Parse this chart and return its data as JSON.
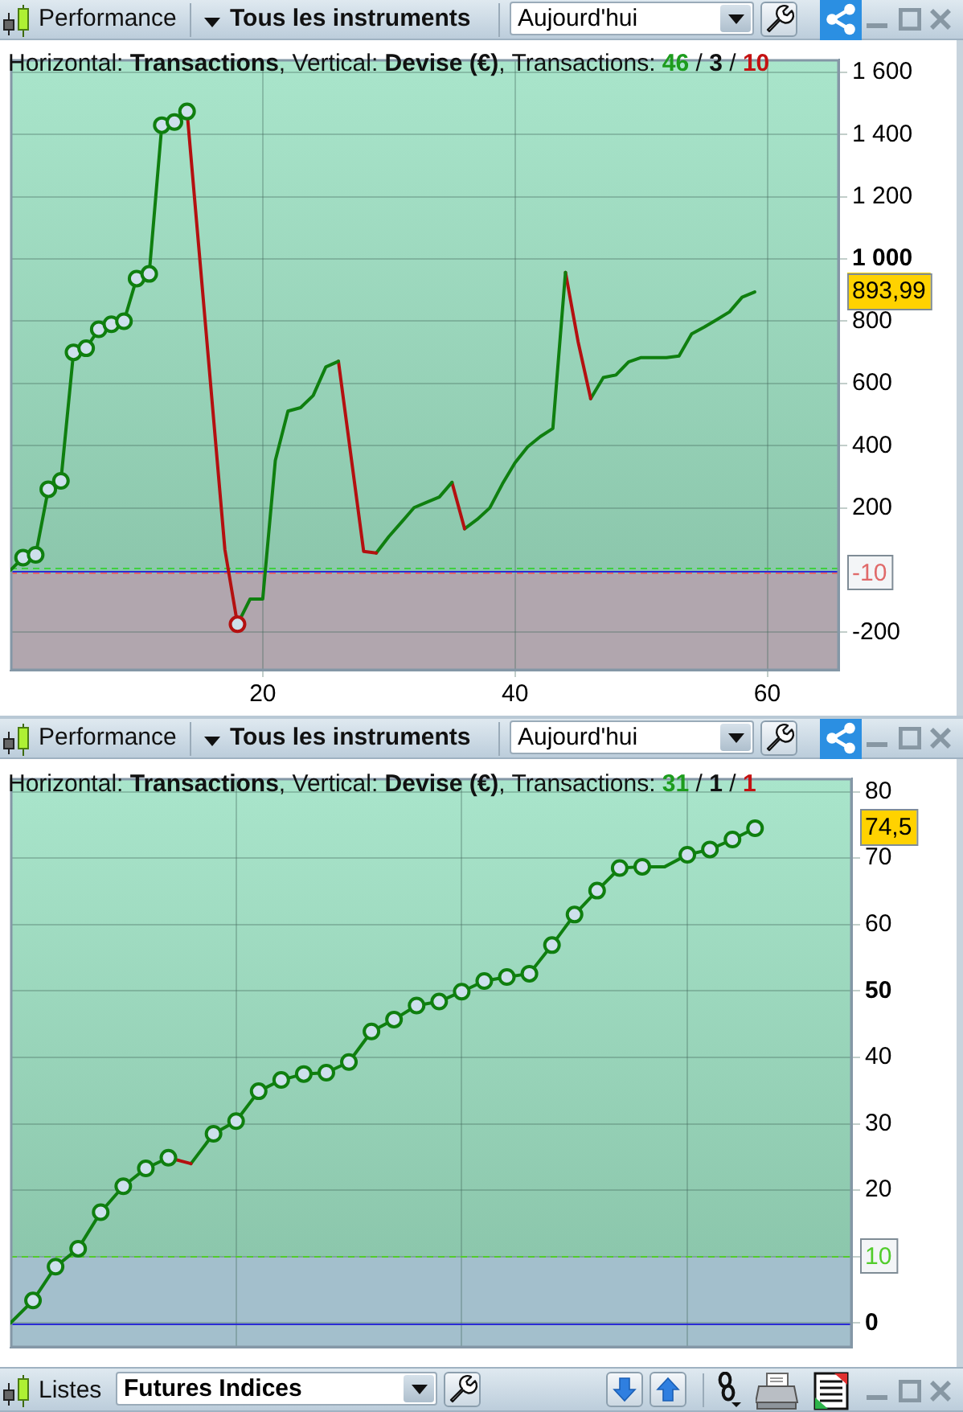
{
  "chart_data": [
    {
      "type": "line",
      "title": "Horizontal: Transactions, Vertical: Devise (€), Transactions: 46 / 3 / 10",
      "annotations": [
        "Performance",
        "Tous les instruments",
        "Aujourd'hui"
      ],
      "series": [
        {
          "color": "#0f7f0f",
          "x": [
            0,
            1,
            2,
            3,
            4,
            5,
            6,
            7,
            8,
            9,
            10,
            11,
            12,
            13,
            14
          ],
          "values": [
            0,
            40,
            49,
            260,
            287,
            700,
            713,
            774,
            790,
            800,
            937,
            952,
            1430,
            1440,
            1474
          ]
        },
        {
          "color": "#b41010",
          "x": [
            14,
            17,
            18
          ],
          "values": [
            1474,
            66,
            -174
          ]
        },
        {
          "color": "#0f7f0f",
          "x": [
            18,
            19,
            20,
            21,
            22,
            23,
            24,
            25,
            26
          ],
          "values": [
            -174,
            -93,
            -93,
            353,
            511,
            522,
            561,
            653,
            671
          ]
        },
        {
          "color": "#b41010",
          "x": [
            26,
            28,
            29
          ],
          "values": [
            671,
            60,
            55
          ]
        },
        {
          "color": "#0f7f0f",
          "x": [
            29,
            30,
            31,
            32,
            33,
            34,
            35
          ],
          "values": [
            55,
            108,
            154,
            201,
            218,
            235,
            282
          ]
        },
        {
          "color": "#b41010",
          "x": [
            35,
            36
          ],
          "values": [
            282,
            133
          ]
        },
        {
          "color": "#0f7f0f",
          "x": [
            36,
            37,
            38,
            39,
            40,
            41,
            42,
            43,
            44
          ],
          "values": [
            133,
            163,
            200,
            277,
            345,
            396,
            429,
            455,
            957
          ]
        },
        {
          "color": "#b41010",
          "x": [
            44,
            45,
            46
          ],
          "values": [
            957,
            734,
            551
          ]
        },
        {
          "color": "#0f7f0f",
          "x": [
            46,
            47,
            48,
            49,
            50,
            51,
            52,
            53,
            54,
            55,
            56,
            57,
            58,
            59
          ],
          "values": [
            551,
            619,
            627,
            669,
            683,
            683,
            683,
            688,
            759,
            781,
            805,
            830,
            877,
            893.99
          ]
        },
        {
          "type": "scatter",
          "marker": "circle",
          "color": "#0f7f0f",
          "x": [
            1,
            2,
            3,
            4,
            5,
            6,
            7,
            8,
            9,
            10,
            11,
            12,
            13,
            14
          ],
          "values": [
            40,
            49,
            260,
            287,
            700,
            713,
            774,
            790,
            800,
            937,
            952,
            1430,
            1440,
            1474
          ]
        },
        {
          "type": "scatter",
          "marker": "circle",
          "color": "#b41010",
          "x": [
            18
          ],
          "values": [
            -174
          ]
        }
      ],
      "xlim": [
        0,
        65.7
      ],
      "xticks": [
        20,
        40,
        60
      ],
      "ylim": [
        -323,
        1641
      ],
      "yticks": [
        -200,
        200,
        400,
        600,
        800,
        {
          "value": 893.99,
          "label": "893,99"
        },
        {
          "value": 1000,
          "label": "1 000"
        },
        {
          "value": 1200,
          "label": "1 200"
        },
        {
          "value": 1400,
          "label": "1 400"
        },
        {
          "value": 1600,
          "label": "1 600"
        }
      ],
      "ref_lines": [
        {
          "axis": "y",
          "value": 10,
          "color": "#3fcf3f",
          "line_style": "dashed"
        },
        {
          "axis": "y",
          "value": 0,
          "color": "#2b2bd6",
          "line_style": "solid"
        },
        {
          "axis": "y",
          "value": -10,
          "label": "-10",
          "color": "#e06a6a",
          "line_style": "dashed"
        }
      ],
      "bands": [
        {
          "axis": "y",
          "from": -323,
          "to": -10,
          "color": "#b1a6ae"
        }
      ],
      "grid": true
    },
    {
      "type": "line",
      "title": "Horizontal: Transactions, Vertical: Devise (€), Transactions: 31 / 1 / 1",
      "annotations": [
        "Performance",
        "Tous les instruments",
        "Aujourd'hui",
        "Listes",
        "Futures Indices"
      ],
      "categories": [
        null,
        null,
        null,
        null,
        null,
        null,
        null,
        null,
        null,
        null,
        null,
        null,
        null,
        null,
        null,
        null,
        null,
        null,
        null,
        null,
        null,
        null,
        null,
        null,
        null,
        null,
        null,
        null,
        null,
        null,
        null,
        null,
        null,
        null
      ],
      "series": [
        {
          "color": "#0f7f0f",
          "values": [
            0,
            3.4,
            8.5,
            11.2,
            16.7,
            20.6,
            23.3,
            24.9,
            null,
            null,
            null,
            null,
            null,
            null,
            null,
            null,
            null,
            null,
            null,
            null,
            null,
            null,
            null,
            null,
            null,
            null,
            null,
            null,
            null,
            null,
            null,
            null,
            null,
            null
          ]
        },
        {
          "color": "#b41010",
          "values": [
            null,
            null,
            null,
            null,
            null,
            null,
            null,
            24.9,
            24.0,
            null,
            null,
            null,
            null,
            null,
            null,
            null,
            null,
            null,
            null,
            null,
            null,
            null,
            null,
            null,
            null,
            null,
            null,
            null,
            null,
            null,
            null,
            null,
            null,
            null
          ]
        },
        {
          "color": "#0f7f0f",
          "values": [
            null,
            null,
            null,
            null,
            null,
            null,
            null,
            null,
            24.0,
            28.5,
            30.4,
            34.9,
            36.6,
            37.5,
            37.7,
            39.3,
            43.9,
            45.7,
            47.8,
            48.4,
            49.9,
            51.5,
            52.1,
            52.6,
            56.9,
            61.5,
            65.1,
            68.5,
            68.7,
            68.7,
            70.5,
            71.3,
            72.8,
            74.5
          ]
        },
        {
          "type": "scatter",
          "marker": "circle",
          "color": "#0f7f0f",
          "values": [
            null,
            3.4,
            8.5,
            11.2,
            16.7,
            20.6,
            23.3,
            24.9,
            null,
            28.5,
            30.4,
            34.9,
            36.6,
            37.5,
            37.7,
            39.3,
            43.9,
            45.7,
            47.8,
            48.4,
            49.9,
            51.5,
            52.1,
            52.6,
            56.9,
            61.5,
            65.1,
            68.5,
            68.7,
            null,
            70.5,
            71.3,
            72.8,
            74.5
          ]
        }
      ],
      "ylim": [
        -3.7,
        82
      ],
      "yticks": [
        0,
        {
          "value": 10,
          "label": null
        },
        20,
        30,
        40,
        50,
        60,
        70,
        {
          "value": 74.5,
          "label": "74,5"
        },
        80
      ],
      "ref_lines": [
        {
          "axis": "y",
          "value": 10,
          "label": "10",
          "color": "#52cc2c",
          "line_style": "dashed"
        },
        {
          "axis": "y",
          "value": 0,
          "color": "#2b2bd6",
          "line_style": "solid"
        }
      ],
      "bands": [
        {
          "axis": "y",
          "from": -3.7,
          "to": 10,
          "color": "#a3bfcc"
        }
      ],
      "grid": true,
      "tick_labels": "y"
    }
  ]
}
